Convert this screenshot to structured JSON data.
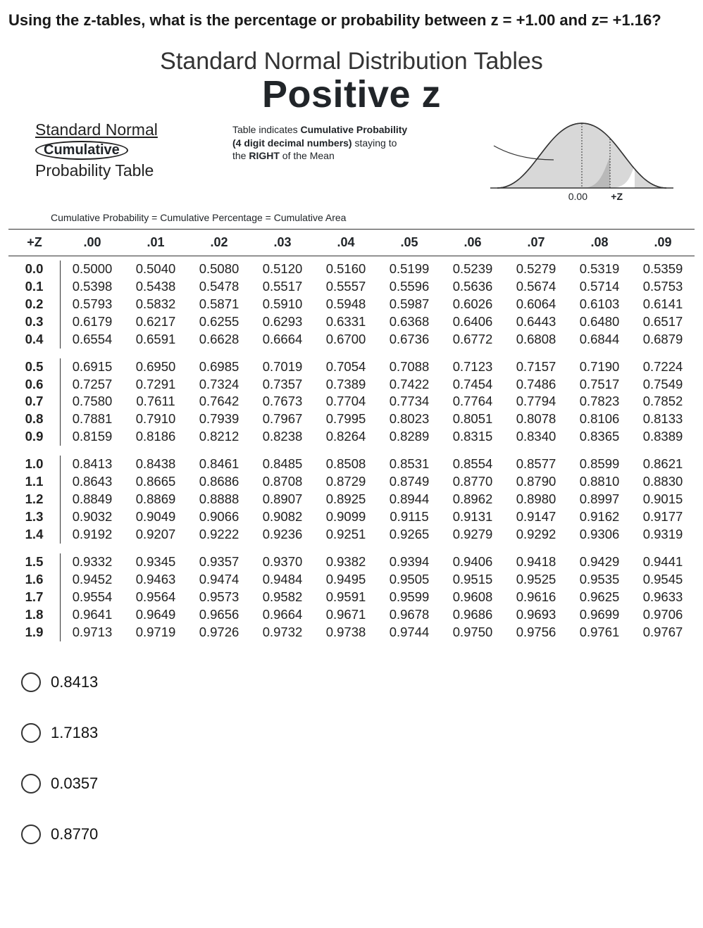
{
  "question": "Using the z-tables, what is the percentage or probability between z = +1.00 and z= +1.16?",
  "tables_title": "Standard Normal Distribution Tables",
  "positive_z": "Positive z",
  "left_block": {
    "line1": "Standard Normal",
    "cumulative": "Cumulative",
    "line3": "Probability Table"
  },
  "mid_block": {
    "line1a": "Table indicates ",
    "line1b": "Cumulative Probability",
    "line2a": "(4 digit decimal numbers)",
    "line2b": " staying to",
    "line3a": "the ",
    "line3b": "RIGHT",
    "line3c": " of the Mean"
  },
  "curve_labels": {
    "zero": "0.00",
    "plusz": "+Z"
  },
  "eq_line": "Cumulative Probability = Cumulative Percentage = Cumulative Area",
  "z_header": "+Z",
  "columns": [
    ".00",
    ".01",
    ".02",
    ".03",
    ".04",
    ".05",
    ".06",
    ".07",
    ".08",
    ".09"
  ],
  "groups": [
    {
      "rows": [
        {
          "label": "0.0",
          "vals": [
            "0.5000",
            "0.5040",
            "0.5080",
            "0.5120",
            "0.5160",
            "0.5199",
            "0.5239",
            "0.5279",
            "0.5319",
            "0.5359"
          ]
        },
        {
          "label": "0.1",
          "vals": [
            "0.5398",
            "0.5438",
            "0.5478",
            "0.5517",
            "0.5557",
            "0.5596",
            "0.5636",
            "0.5674",
            "0.5714",
            "0.5753"
          ]
        },
        {
          "label": "0.2",
          "vals": [
            "0.5793",
            "0.5832",
            "0.5871",
            "0.5910",
            "0.5948",
            "0.5987",
            "0.6026",
            "0.6064",
            "0.6103",
            "0.6141"
          ]
        },
        {
          "label": "0.3",
          "vals": [
            "0.6179",
            "0.6217",
            "0.6255",
            "0.6293",
            "0.6331",
            "0.6368",
            "0.6406",
            "0.6443",
            "0.6480",
            "0.6517"
          ]
        },
        {
          "label": "0.4",
          "vals": [
            "0.6554",
            "0.6591",
            "0.6628",
            "0.6664",
            "0.6700",
            "0.6736",
            "0.6772",
            "0.6808",
            "0.6844",
            "0.6879"
          ]
        }
      ]
    },
    {
      "rows": [
        {
          "label": "0.5",
          "vals": [
            "0.6915",
            "0.6950",
            "0.6985",
            "0.7019",
            "0.7054",
            "0.7088",
            "0.7123",
            "0.7157",
            "0.7190",
            "0.7224"
          ]
        },
        {
          "label": "0.6",
          "vals": [
            "0.7257",
            "0.7291",
            "0.7324",
            "0.7357",
            "0.7389",
            "0.7422",
            "0.7454",
            "0.7486",
            "0.7517",
            "0.7549"
          ]
        },
        {
          "label": "0.7",
          "vals": [
            "0.7580",
            "0.7611",
            "0.7642",
            "0.7673",
            "0.7704",
            "0.7734",
            "0.7764",
            "0.7794",
            "0.7823",
            "0.7852"
          ]
        },
        {
          "label": "0.8",
          "vals": [
            "0.7881",
            "0.7910",
            "0.7939",
            "0.7967",
            "0.7995",
            "0.8023",
            "0.8051",
            "0.8078",
            "0.8106",
            "0.8133"
          ]
        },
        {
          "label": "0.9",
          "vals": [
            "0.8159",
            "0.8186",
            "0.8212",
            "0.8238",
            "0.8264",
            "0.8289",
            "0.8315",
            "0.8340",
            "0.8365",
            "0.8389"
          ]
        }
      ]
    },
    {
      "rows": [
        {
          "label": "1.0",
          "vals": [
            "0.8413",
            "0.8438",
            "0.8461",
            "0.8485",
            "0.8508",
            "0.8531",
            "0.8554",
            "0.8577",
            "0.8599",
            "0.8621"
          ]
        },
        {
          "label": "1.1",
          "vals": [
            "0.8643",
            "0.8665",
            "0.8686",
            "0.8708",
            "0.8729",
            "0.8749",
            "0.8770",
            "0.8790",
            "0.8810",
            "0.8830"
          ]
        },
        {
          "label": "1.2",
          "vals": [
            "0.8849",
            "0.8869",
            "0.8888",
            "0.8907",
            "0.8925",
            "0.8944",
            "0.8962",
            "0.8980",
            "0.8997",
            "0.9015"
          ]
        },
        {
          "label": "1.3",
          "vals": [
            "0.9032",
            "0.9049",
            "0.9066",
            "0.9082",
            "0.9099",
            "0.9115",
            "0.9131",
            "0.9147",
            "0.9162",
            "0.9177"
          ]
        },
        {
          "label": "1.4",
          "vals": [
            "0.9192",
            "0.9207",
            "0.9222",
            "0.9236",
            "0.9251",
            "0.9265",
            "0.9279",
            "0.9292",
            "0.9306",
            "0.9319"
          ]
        }
      ]
    },
    {
      "rows": [
        {
          "label": "1.5",
          "vals": [
            "0.9332",
            "0.9345",
            "0.9357",
            "0.9370",
            "0.9382",
            "0.9394",
            "0.9406",
            "0.9418",
            "0.9429",
            "0.9441"
          ]
        },
        {
          "label": "1.6",
          "vals": [
            "0.9452",
            "0.9463",
            "0.9474",
            "0.9484",
            "0.9495",
            "0.9505",
            "0.9515",
            "0.9525",
            "0.9535",
            "0.9545"
          ]
        },
        {
          "label": "1.7",
          "vals": [
            "0.9554",
            "0.9564",
            "0.9573",
            "0.9582",
            "0.9591",
            "0.9599",
            "0.9608",
            "0.9616",
            "0.9625",
            "0.9633"
          ]
        },
        {
          "label": "1.8",
          "vals": [
            "0.9641",
            "0.9649",
            "0.9656",
            "0.9664",
            "0.9671",
            "0.9678",
            "0.9686",
            "0.9693",
            "0.9699",
            "0.9706"
          ]
        },
        {
          "label": "1.9",
          "vals": [
            "0.9713",
            "0.9719",
            "0.9726",
            "0.9732",
            "0.9738",
            "0.9744",
            "0.9750",
            "0.9756",
            "0.9761",
            "0.9767"
          ]
        }
      ]
    }
  ],
  "answers": [
    "0.8413",
    "1.7183",
    "0.0357",
    "0.8770"
  ],
  "colors": {
    "text": "#212529",
    "curve_fill": "#d8d8d8",
    "curve_stroke": "#333333",
    "border": "#333333"
  }
}
